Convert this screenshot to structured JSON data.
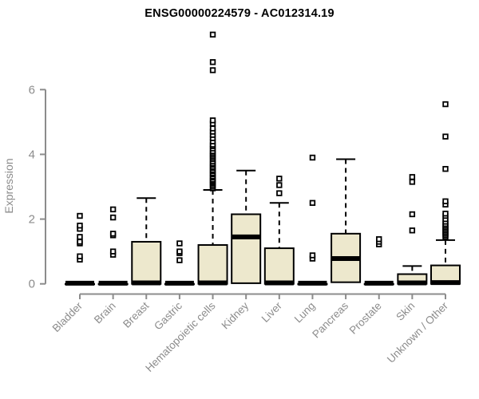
{
  "chart_data": {
    "type": "boxplot",
    "title": "ENSG00000224579 - AC012314.19",
    "ylabel": "Expression",
    "xlabel": "",
    "yticks": [
      0,
      2,
      4,
      6
    ],
    "ylim": [
      0,
      7.9
    ],
    "grid": false,
    "legend_position": "none",
    "colors": {
      "box_fill": "#EDE8CD",
      "line": "#000000",
      "axis": "#8C8C8C",
      "title": "#000000"
    },
    "boxes": [
      {
        "category": "Bladder",
        "q1": 0,
        "median": 0.02,
        "q3": 0,
        "whisker_low": 0,
        "whisker_high": 0,
        "outliers": [
          0.75,
          0.85,
          1.25,
          1.3,
          1.45,
          1.7,
          1.8,
          2.1
        ]
      },
      {
        "category": "Brain",
        "q1": 0,
        "median": 0.02,
        "q3": 0,
        "whisker_low": 0,
        "whisker_high": 0,
        "outliers": [
          0.9,
          1.0,
          1.5,
          1.55,
          2.05,
          2.3
        ]
      },
      {
        "category": "Breast",
        "q1": 0,
        "median": 0.03,
        "q3": 1.3,
        "whisker_low": 0,
        "whisker_high": 2.65,
        "outliers": []
      },
      {
        "category": "Gastric",
        "q1": 0,
        "median": 0.02,
        "q3": 0,
        "whisker_low": 0,
        "whisker_high": 0,
        "outliers": [
          0.73,
          0.95,
          1.0,
          1.25
        ]
      },
      {
        "category": "Hematopoietic cells",
        "q1": 0,
        "median": 0.03,
        "q3": 1.2,
        "whisker_low": 0,
        "whisker_high": 2.9,
        "outliers": [
          2.95,
          3.0,
          3.05,
          3.1,
          3.14,
          3.18,
          3.22,
          3.28,
          3.32,
          3.38,
          3.42,
          3.48,
          3.52,
          3.58,
          3.62,
          3.68,
          3.72,
          3.78,
          3.85,
          3.9,
          3.95,
          4.0,
          4.05,
          4.1,
          4.18,
          4.25,
          4.3,
          4.4,
          4.5,
          4.6,
          4.7,
          4.8,
          4.95,
          5.05,
          6.6,
          6.85,
          7.7
        ]
      },
      {
        "category": "Kidney",
        "q1": 0.02,
        "median": 1.45,
        "q3": 2.15,
        "whisker_low": 0.02,
        "whisker_high": 3.5,
        "outliers": []
      },
      {
        "category": "Liver",
        "q1": 0,
        "median": 0.03,
        "q3": 1.1,
        "whisker_low": 0,
        "whisker_high": 2.5,
        "outliers": [
          2.8,
          3.05,
          3.25
        ]
      },
      {
        "category": "Lung",
        "q1": 0,
        "median": 0.02,
        "q3": 0,
        "whisker_low": 0,
        "whisker_high": 0,
        "outliers": [
          0.78,
          0.88,
          2.5,
          3.9
        ]
      },
      {
        "category": "Pancreas",
        "q1": 0.05,
        "median": 0.78,
        "q3": 1.55,
        "whisker_low": 0.05,
        "whisker_high": 3.85,
        "outliers": []
      },
      {
        "category": "Prostate",
        "q1": 0,
        "median": 0.02,
        "q3": 0,
        "whisker_low": 0,
        "whisker_high": 0,
        "outliers": [
          1.22,
          1.3,
          1.38
        ]
      },
      {
        "category": "Skin",
        "q1": 0,
        "median": 0.03,
        "q3": 0.3,
        "whisker_low": 0,
        "whisker_high": 0.55,
        "outliers": [
          1.65,
          2.15,
          3.15,
          3.3
        ]
      },
      {
        "category": "Unknown / Other",
        "q1": 0,
        "median": 0.04,
        "q3": 0.57,
        "whisker_low": 0,
        "whisker_high": 1.35,
        "outliers": [
          1.45,
          1.5,
          1.55,
          1.6,
          1.65,
          1.7,
          1.75,
          1.8,
          1.85,
          1.92,
          2.0,
          2.1,
          2.17,
          2.45,
          2.55,
          3.55,
          4.55,
          5.55
        ]
      }
    ]
  }
}
